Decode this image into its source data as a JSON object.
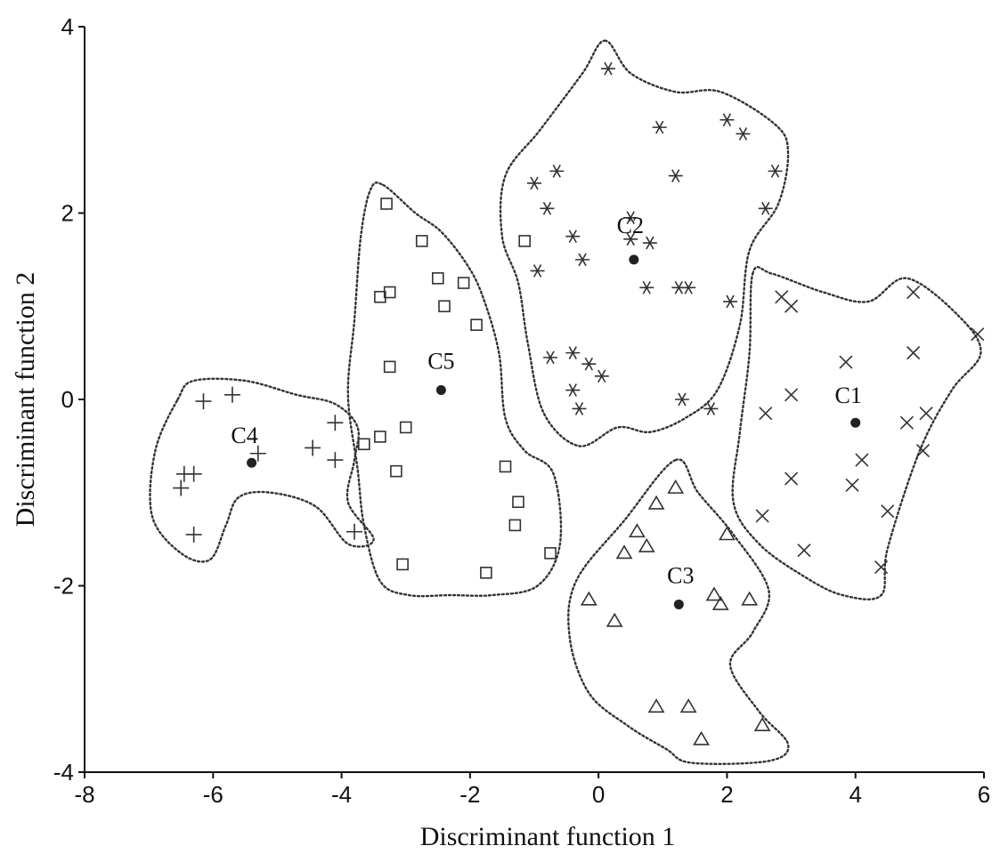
{
  "chart_data": {
    "type": "scatter",
    "title": "",
    "xlabel": "Discriminant function 1",
    "ylabel": "Discriminant function 2",
    "xlim": [
      -8,
      6
    ],
    "ylim": [
      -4,
      4
    ],
    "x_ticks": [
      "-8",
      "-6",
      "-4",
      "-2",
      "0",
      "2",
      "4",
      "6"
    ],
    "y_ticks": [
      "-4",
      "-2",
      "0",
      "2",
      "4"
    ],
    "grid": false,
    "legend": "none",
    "series": [
      {
        "group": "C1",
        "marker": "x",
        "centroid": [
          4.0,
          -0.25
        ],
        "points": [
          [
            2.85,
            1.1
          ],
          [
            3.0,
            1.0
          ],
          [
            3.0,
            0.05
          ],
          [
            2.6,
            -0.15
          ],
          [
            3.85,
            0.4
          ],
          [
            4.9,
            1.15
          ],
          [
            4.9,
            0.5
          ],
          [
            5.9,
            0.7
          ],
          [
            4.8,
            -0.25
          ],
          [
            5.1,
            -0.15
          ],
          [
            5.05,
            -0.55
          ],
          [
            4.1,
            -0.65
          ],
          [
            3.95,
            -0.92
          ],
          [
            3.0,
            -0.85
          ],
          [
            2.55,
            -1.25
          ],
          [
            4.5,
            -1.2
          ],
          [
            3.2,
            -1.62
          ],
          [
            4.4,
            -1.8
          ]
        ],
        "hull": [
          [
            2.4,
            1.35
          ],
          [
            2.7,
            1.35
          ],
          [
            3.5,
            1.15
          ],
          [
            4.2,
            1.05
          ],
          [
            4.8,
            1.3
          ],
          [
            5.6,
            0.9
          ],
          [
            5.95,
            0.5
          ],
          [
            5.5,
            0.1
          ],
          [
            5.0,
            -0.55
          ],
          [
            4.5,
            -1.6
          ],
          [
            4.4,
            -2.1
          ],
          [
            3.8,
            -2.1
          ],
          [
            3.2,
            -1.9
          ],
          [
            2.5,
            -1.55
          ],
          [
            2.1,
            -1.1
          ],
          [
            2.2,
            -0.35
          ],
          [
            2.35,
            0.5
          ]
        ],
        "label": "C1"
      },
      {
        "group": "C2",
        "marker": "asterisk",
        "centroid": [
          0.55,
          1.5
        ],
        "points": [
          [
            0.15,
            3.55
          ],
          [
            0.95,
            2.92
          ],
          [
            2.0,
            3.0
          ],
          [
            2.25,
            2.85
          ],
          [
            -0.65,
            2.45
          ],
          [
            -1.0,
            2.32
          ],
          [
            1.2,
            2.4
          ],
          [
            2.75,
            2.45
          ],
          [
            -0.8,
            2.05
          ],
          [
            2.6,
            2.05
          ],
          [
            0.5,
            1.95
          ],
          [
            -0.4,
            1.75
          ],
          [
            0.5,
            1.72
          ],
          [
            0.8,
            1.68
          ],
          [
            -0.25,
            1.5
          ],
          [
            -0.95,
            1.38
          ],
          [
            0.75,
            1.2
          ],
          [
            1.25,
            1.2
          ],
          [
            1.4,
            1.2
          ],
          [
            2.05,
            1.05
          ],
          [
            -0.75,
            0.45
          ],
          [
            -0.4,
            0.5
          ],
          [
            -0.15,
            0.38
          ],
          [
            0.05,
            0.25
          ],
          [
            -0.4,
            0.1
          ],
          [
            -0.3,
            -0.1
          ],
          [
            1.3,
            0.0
          ],
          [
            1.75,
            -0.1
          ]
        ],
        "hull": [
          [
            0.1,
            3.85
          ],
          [
            0.5,
            3.5
          ],
          [
            1.2,
            3.3
          ],
          [
            1.9,
            3.3
          ],
          [
            2.75,
            2.95
          ],
          [
            2.95,
            2.65
          ],
          [
            2.8,
            2.1
          ],
          [
            2.35,
            1.6
          ],
          [
            2.2,
            0.8
          ],
          [
            1.85,
            0.1
          ],
          [
            1.35,
            -0.2
          ],
          [
            0.8,
            -0.35
          ],
          [
            0.3,
            -0.3
          ],
          [
            -0.3,
            -0.5
          ],
          [
            -0.85,
            -0.15
          ],
          [
            -1.1,
            0.6
          ],
          [
            -1.25,
            1.25
          ],
          [
            -1.5,
            1.75
          ],
          [
            -1.45,
            2.4
          ],
          [
            -0.9,
            2.9
          ],
          [
            -0.25,
            3.5
          ]
        ],
        "label": "C2"
      },
      {
        "group": "C3",
        "marker": "triangle",
        "centroid": [
          1.25,
          -2.2
        ],
        "points": [
          [
            1.2,
            -0.95
          ],
          [
            0.9,
            -1.12
          ],
          [
            0.6,
            -1.42
          ],
          [
            0.4,
            -1.65
          ],
          [
            0.75,
            -1.58
          ],
          [
            2.0,
            -1.45
          ],
          [
            -0.15,
            -2.15
          ],
          [
            0.25,
            -2.38
          ],
          [
            1.8,
            -2.1
          ],
          [
            1.9,
            -2.2
          ],
          [
            2.35,
            -2.15
          ],
          [
            0.9,
            -3.3
          ],
          [
            1.4,
            -3.3
          ],
          [
            2.55,
            -3.5
          ],
          [
            1.6,
            -3.65
          ]
        ],
        "hull": [
          [
            1.2,
            -0.65
          ],
          [
            1.55,
            -1.0
          ],
          [
            2.1,
            -1.45
          ],
          [
            2.65,
            -2.05
          ],
          [
            2.4,
            -2.5
          ],
          [
            2.05,
            -2.85
          ],
          [
            2.5,
            -3.35
          ],
          [
            2.95,
            -3.7
          ],
          [
            2.65,
            -3.88
          ],
          [
            1.45,
            -3.9
          ],
          [
            1.05,
            -3.75
          ],
          [
            0.45,
            -3.5
          ],
          [
            -0.15,
            -3.15
          ],
          [
            -0.45,
            -2.55
          ],
          [
            -0.35,
            -1.95
          ],
          [
            0.4,
            -1.3
          ]
        ],
        "label": "C3"
      },
      {
        "group": "C4",
        "marker": "plus",
        "centroid": [
          -5.4,
          -0.68
        ],
        "points": [
          [
            -5.7,
            0.05
          ],
          [
            -6.15,
            -0.02
          ],
          [
            -4.1,
            -0.25
          ],
          [
            -4.45,
            -0.52
          ],
          [
            -5.3,
            -0.58
          ],
          [
            -4.1,
            -0.65
          ],
          [
            -6.45,
            -0.8
          ],
          [
            -6.3,
            -0.8
          ],
          [
            -6.5,
            -0.95
          ],
          [
            -6.3,
            -1.45
          ],
          [
            -3.8,
            -1.42
          ]
        ],
        "hull": [
          [
            -6.55,
            0.0
          ],
          [
            -6.3,
            0.2
          ],
          [
            -5.5,
            0.2
          ],
          [
            -4.7,
            0.05
          ],
          [
            -4.1,
            -0.05
          ],
          [
            -3.75,
            -0.3
          ],
          [
            -3.8,
            -0.65
          ],
          [
            -3.9,
            -1.1
          ],
          [
            -3.5,
            -1.5
          ],
          [
            -3.9,
            -1.55
          ],
          [
            -4.4,
            -1.15
          ],
          [
            -5.1,
            -1.0
          ],
          [
            -5.6,
            -1.05
          ],
          [
            -5.8,
            -1.35
          ],
          [
            -6.05,
            -1.72
          ],
          [
            -6.5,
            -1.65
          ],
          [
            -6.95,
            -1.25
          ],
          [
            -6.9,
            -0.55
          ]
        ],
        "label": "C4"
      },
      {
        "group": "C5",
        "marker": "square",
        "centroid": [
          -2.45,
          0.1
        ],
        "points": [
          [
            -3.3,
            2.1
          ],
          [
            -2.75,
            1.7
          ],
          [
            -1.15,
            1.7
          ],
          [
            -2.5,
            1.3
          ],
          [
            -2.1,
            1.25
          ],
          [
            -3.4,
            1.1
          ],
          [
            -3.25,
            1.15
          ],
          [
            -2.4,
            1.0
          ],
          [
            -1.9,
            0.8
          ],
          [
            -3.25,
            0.35
          ],
          [
            -3.0,
            -0.3
          ],
          [
            -3.4,
            -0.4
          ],
          [
            -3.65,
            -0.48
          ],
          [
            -3.15,
            -0.77
          ],
          [
            -1.45,
            -0.72
          ],
          [
            -1.25,
            -1.1
          ],
          [
            -1.3,
            -1.35
          ],
          [
            -0.75,
            -1.65
          ],
          [
            -3.05,
            -1.77
          ],
          [
            -1.75,
            -1.86
          ]
        ],
        "hull": [
          [
            -3.35,
            2.3
          ],
          [
            -2.85,
            2.0
          ],
          [
            -2.45,
            1.8
          ],
          [
            -2.05,
            1.45
          ],
          [
            -1.8,
            1.1
          ],
          [
            -1.55,
            0.5
          ],
          [
            -1.45,
            -0.2
          ],
          [
            -1.15,
            -0.55
          ],
          [
            -0.7,
            -0.8
          ],
          [
            -0.6,
            -1.55
          ],
          [
            -0.95,
            -2.0
          ],
          [
            -1.65,
            -2.1
          ],
          [
            -2.3,
            -2.1
          ],
          [
            -2.95,
            -2.1
          ],
          [
            -3.4,
            -1.95
          ],
          [
            -3.65,
            -1.35
          ],
          [
            -3.75,
            -0.75
          ],
          [
            -3.9,
            0.05
          ],
          [
            -3.8,
            0.85
          ],
          [
            -3.7,
            1.75
          ],
          [
            -3.55,
            2.25
          ]
        ],
        "label": "C5"
      }
    ]
  }
}
